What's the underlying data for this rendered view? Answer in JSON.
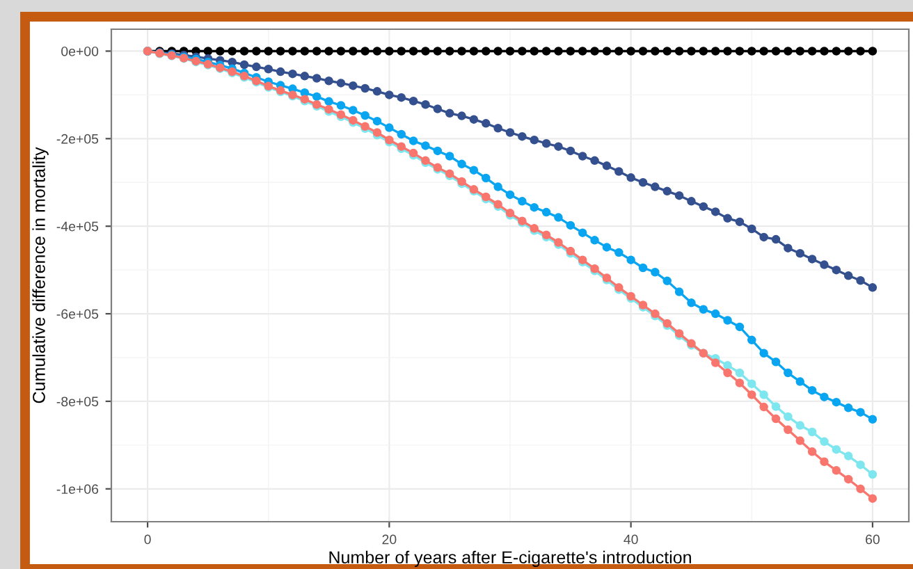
{
  "chart_data": {
    "type": "line",
    "xlabel": "Number of years after E-cigarette's introduction",
    "ylabel": "Cumulative difference in mortality",
    "x": [
      0,
      1,
      2,
      3,
      4,
      5,
      6,
      7,
      8,
      9,
      10,
      11,
      12,
      13,
      14,
      15,
      16,
      17,
      18,
      19,
      20,
      21,
      22,
      23,
      24,
      25,
      26,
      27,
      28,
      29,
      30,
      31,
      32,
      33,
      34,
      35,
      36,
      37,
      38,
      39,
      40,
      41,
      42,
      43,
      44,
      45,
      46,
      47,
      48,
      49,
      50,
      51,
      52,
      53,
      54,
      55,
      56,
      57,
      58,
      59,
      60
    ],
    "series": [
      {
        "color": "#000000",
        "values": [
          0,
          0,
          0,
          0,
          0,
          0,
          0,
          0,
          0,
          0,
          0,
          0,
          0,
          0,
          0,
          0,
          0,
          0,
          0,
          0,
          0,
          0,
          0,
          0,
          0,
          0,
          0,
          0,
          0,
          0,
          0,
          0,
          0,
          0,
          0,
          0,
          0,
          0,
          0,
          0,
          0,
          0,
          0,
          0,
          0,
          0,
          0,
          0,
          0,
          0,
          0,
          0,
          0,
          0,
          0,
          0,
          0,
          0,
          0,
          0,
          0
        ]
      },
      {
        "color": "#34508f",
        "values": [
          0,
          -3000,
          -6000,
          -9000,
          -13000,
          -17000,
          -21000,
          -25000,
          -31000,
          -36000,
          -41000,
          -47000,
          -52000,
          -57000,
          -62000,
          -68000,
          -73000,
          -79000,
          -85000,
          -92000,
          -100000,
          -106000,
          -114000,
          -122000,
          -132000,
          -142000,
          -148000,
          -156000,
          -165000,
          -176000,
          -186000,
          -195000,
          -203000,
          -211000,
          -218000,
          -228000,
          -240000,
          -250000,
          -262000,
          -275000,
          -289000,
          -300000,
          -310000,
          -320000,
          -330000,
          -343000,
          -355000,
          -367000,
          -382000,
          -390000,
          -406000,
          -425000,
          -430000,
          -450000,
          -462000,
          -475000,
          -488000,
          -500000,
          -513000,
          -524000,
          -540000
        ]
      },
      {
        "color": "#0aa5f0",
        "values": [
          0,
          -4000,
          -8000,
          -13000,
          -18000,
          -25000,
          -32000,
          -40000,
          -50000,
          -60000,
          -70000,
          -78000,
          -86000,
          -95000,
          -104000,
          -115000,
          -124000,
          -135000,
          -147000,
          -160000,
          -175000,
          -190000,
          -205000,
          -216000,
          -228000,
          -240000,
          -258000,
          -272000,
          -290000,
          -310000,
          -328000,
          -343000,
          -357000,
          -368000,
          -380000,
          -398000,
          -415000,
          -432000,
          -448000,
          -460000,
          -477000,
          -495000,
          -505000,
          -525000,
          -550000,
          -575000,
          -590000,
          -600000,
          -615000,
          -630000,
          -660000,
          -690000,
          -710000,
          -735000,
          -755000,
          -775000,
          -790000,
          -802000,
          -815000,
          -825000,
          -841000
        ]
      },
      {
        "color": "#7ee6ee",
        "values": [
          0,
          -6000,
          -11000,
          -17000,
          -25000,
          -32000,
          -40000,
          -50000,
          -60000,
          -71000,
          -83000,
          -93000,
          -103000,
          -114000,
          -126000,
          -138000,
          -150000,
          -163000,
          -177000,
          -192000,
          -208000,
          -223000,
          -238000,
          -255000,
          -270000,
          -285000,
          -303000,
          -320000,
          -338000,
          -355000,
          -375000,
          -392000,
          -410000,
          -425000,
          -442000,
          -462000,
          -482000,
          -502000,
          -523000,
          -545000,
          -565000,
          -585000,
          -605000,
          -627000,
          -650000,
          -672000,
          -690000,
          -702000,
          -718000,
          -735000,
          -760000,
          -785000,
          -812000,
          -835000,
          -855000,
          -870000,
          -892000,
          -910000,
          -925000,
          -945000,
          -967000
        ]
      },
      {
        "color": "#f8766d",
        "values": [
          0,
          -5000,
          -10000,
          -16000,
          -23000,
          -30000,
          -38000,
          -47000,
          -57000,
          -68000,
          -80000,
          -90000,
          -100000,
          -110000,
          -122000,
          -133000,
          -145000,
          -158000,
          -172000,
          -186000,
          -203000,
          -218000,
          -233000,
          -250000,
          -266000,
          -280000,
          -298000,
          -316000,
          -333000,
          -350000,
          -370000,
          -388000,
          -405000,
          -420000,
          -437000,
          -457000,
          -477000,
          -497000,
          -518000,
          -540000,
          -560000,
          -580000,
          -600000,
          -622000,
          -645000,
          -668000,
          -690000,
          -712000,
          -735000,
          -758000,
          -785000,
          -813000,
          -840000,
          -865000,
          -890000,
          -915000,
          -938000,
          -958000,
          -978000,
          -1000000,
          -1022000
        ]
      }
    ],
    "xlim": [
      -3,
      63
    ],
    "xticks": [
      0,
      20,
      40,
      60
    ],
    "ylim": [
      -1075000,
      50000
    ],
    "yticks": [
      {
        "value": 0,
        "label": "0e+00"
      },
      {
        "value": -200000,
        "label": "-2e+05"
      },
      {
        "value": -400000,
        "label": "-4e+05"
      },
      {
        "value": -600000,
        "label": "-6e+05"
      },
      {
        "value": -800000,
        "label": "-8e+05"
      },
      {
        "value": -1000000,
        "label": "-1e+06"
      }
    ],
    "grid": true,
    "marker": "circle",
    "line_style": "solid",
    "legend": false
  }
}
